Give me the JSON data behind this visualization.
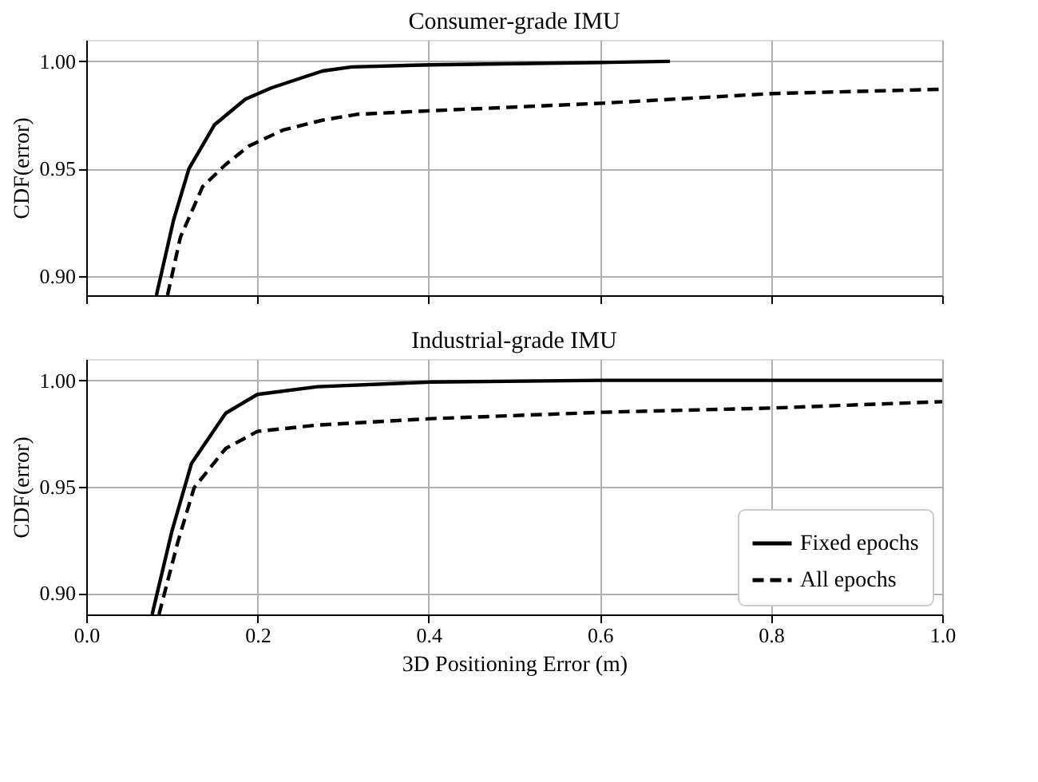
{
  "chart_data": [
    {
      "type": "line",
      "title": "Consumer-grade IMU",
      "ylabel": "CDF(error)",
      "xlim": [
        0,
        1
      ],
      "ylim": [
        0.891,
        1.01
      ],
      "xticks": [
        {
          "value": 0,
          "label": null
        },
        {
          "value": 0.2,
          "label": null
        },
        {
          "value": 0.4,
          "label": null
        },
        {
          "value": 0.6,
          "label": null
        },
        {
          "value": 0.8,
          "label": null
        },
        {
          "value": 1,
          "label": null
        }
      ],
      "yticks": [
        {
          "value": 0.9,
          "label": "0.90"
        },
        {
          "value": 0.95,
          "label": "0.95"
        },
        {
          "value": 1,
          "label": "1.00"
        }
      ],
      "tick_labels": "y",
      "grid": true,
      "legend": false,
      "series": [
        {
          "color": "#000000",
          "line_style": "solid",
          "x": [
            0.082,
            0.102,
            0.12,
            0.15,
            0.186,
            0.216,
            0.256,
            0.276,
            0.31,
            0.403,
            0.603,
            0.682
          ],
          "values": [
            0.891,
            0.926,
            0.95,
            0.9705,
            0.9824,
            0.9876,
            0.9929,
            0.9955,
            0.9974,
            0.9984,
            0.9995,
            1.0
          ]
        },
        {
          "color": "#000000",
          "line_style": "dashed",
          "x": [
            0.095,
            0.11,
            0.136,
            0.163,
            0.19,
            0.23,
            0.276,
            0.316,
            0.403,
            0.603,
            0.802,
            1.0
          ],
          "values": [
            0.891,
            0.918,
            0.9416,
            0.952,
            0.9605,
            0.968,
            0.9726,
            0.9753,
            0.977,
            0.9805,
            0.985,
            0.987
          ]
        }
      ]
    },
    {
      "type": "line",
      "title": "Industrial-grade IMU",
      "xlabel": "3D Positioning Error (m)",
      "ylabel": "CDF(error)",
      "xlim": [
        0,
        1
      ],
      "ylim": [
        0.89,
        1.01
      ],
      "xticks": [
        {
          "value": 0,
          "label": "0.0"
        },
        {
          "value": 0.2,
          "label": "0.2"
        },
        {
          "value": 0.4,
          "label": "0.4"
        },
        {
          "value": 0.6,
          "label": "0.6"
        },
        {
          "value": 0.8,
          "label": "0.8"
        },
        {
          "value": 1,
          "label": "1.0"
        }
      ],
      "yticks": [
        {
          "value": 0.9,
          "label": "0.90"
        },
        {
          "value": 0.95,
          "label": "0.95"
        },
        {
          "value": 1,
          "label": "1.00"
        }
      ],
      "grid": true,
      "legend": "bottom right",
      "series": [
        {
          "name": "Fixed epochs",
          "color": "#000000",
          "line_style": "solid",
          "x": [
            0.077,
            0.1,
            0.123,
            0.163,
            0.2,
            0.27,
            0.403,
            0.603,
            1.0
          ],
          "values": [
            0.89,
            0.929,
            0.961,
            0.9846,
            0.9934,
            0.997,
            0.9992,
            1.0,
            1.0
          ]
        },
        {
          "name": "All epochs",
          "color": "#000000",
          "line_style": "dashed",
          "x": [
            0.085,
            0.107,
            0.126,
            0.163,
            0.2,
            0.27,
            0.403,
            0.603,
            0.802,
            1.0
          ],
          "values": [
            0.89,
            0.924,
            0.9495,
            0.968,
            0.976,
            0.979,
            0.982,
            0.985,
            0.987,
            0.99
          ]
        }
      ]
    }
  ]
}
